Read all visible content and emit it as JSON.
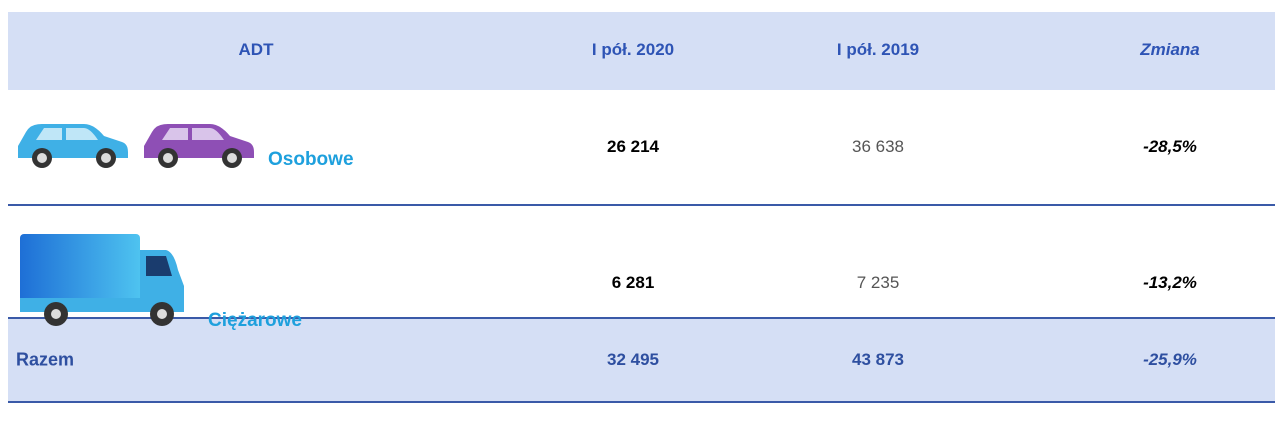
{
  "header": {
    "cells": [
      "ADT",
      "I pół. 2020",
      "I pół. 2019",
      "Zmiana"
    ]
  },
  "rows": [
    {
      "label": "Osobowe",
      "values": [
        "26 214",
        "36 638",
        "-28,5%"
      ]
    },
    {
      "label": "Ciężarowe",
      "values": [
        "6 281",
        "7 235",
        "-13,2%"
      ]
    }
  ],
  "total": {
    "label": "Razem",
    "values": [
      "32 495",
      "43 873",
      "-25,9%"
    ]
  }
}
